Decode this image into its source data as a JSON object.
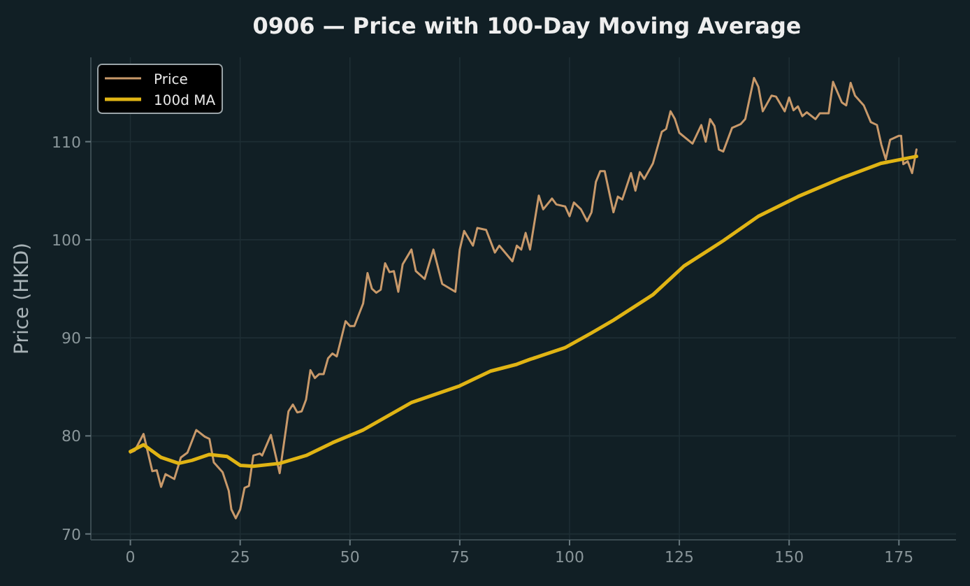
{
  "chart_data": {
    "type": "line",
    "title": "0906 — Price with 100-Day Moving Average",
    "ylabel": "Price (HKD)",
    "xlim": [
      -9,
      188
    ],
    "xticks": [
      0,
      25,
      50,
      75,
      100,
      125,
      150,
      175
    ],
    "ylim": [
      69.4,
      118.6
    ],
    "yticks": [
      70,
      80,
      90,
      100,
      110
    ],
    "grid": true,
    "legend": "top left",
    "line_style": "solid",
    "marker": "none",
    "series": [
      {
        "name": "Price",
        "color": "#c8996a",
        "x": [
          0,
          1,
          3,
          5,
          6,
          7,
          8,
          10,
          11.5,
          13,
          15,
          17,
          18,
          19,
          21,
          22.4,
          23,
          24,
          25,
          26,
          27,
          28,
          29.5,
          30,
          32,
          34,
          36,
          37,
          38,
          39,
          40,
          41,
          42,
          43,
          44,
          45,
          46,
          47,
          49,
          50,
          51,
          53,
          54,
          55,
          56,
          57,
          58,
          59,
          60,
          61,
          62,
          64,
          65,
          67,
          69,
          71,
          74,
          75,
          76,
          78,
          79,
          81,
          83,
          84,
          87,
          88,
          89,
          90,
          91,
          93,
          94,
          96,
          97,
          99,
          100,
          101,
          102.6,
          104,
          105,
          106,
          107,
          108,
          110,
          111,
          112,
          114,
          115,
          116,
          117,
          119,
          121,
          122,
          123,
          124,
          125,
          128,
          130,
          131,
          132,
          133,
          134,
          135,
          137,
          139,
          140,
          142,
          143,
          144,
          146,
          147,
          149,
          150,
          151,
          152,
          153,
          154,
          156,
          157,
          159,
          160,
          162,
          163,
          164,
          165,
          167,
          168.6,
          170,
          171,
          172,
          173,
          175,
          175.5,
          176,
          177,
          178,
          179
        ],
        "values": [
          78.3,
          78.5,
          80.2,
          76.4,
          76.5,
          74.8,
          76.1,
          75.6,
          77.8,
          78.3,
          80.6,
          79.9,
          79.7,
          77.3,
          76.3,
          74.4,
          72.5,
          71.6,
          72.5,
          74.7,
          74.9,
          78.0,
          78.2,
          78.0,
          80.1,
          76.2,
          82.5,
          83.2,
          82.4,
          82.5,
          83.7,
          86.7,
          85.9,
          86.3,
          86.3,
          87.9,
          88.4,
          88.1,
          91.7,
          91.2,
          91.2,
          93.5,
          96.6,
          95.0,
          94.6,
          94.9,
          97.6,
          96.7,
          96.8,
          94.7,
          97.5,
          99.0,
          96.8,
          96.0,
          99.0,
          95.5,
          94.7,
          99.0,
          100.9,
          99.4,
          101.2,
          101.0,
          98.7,
          99.4,
          97.8,
          99.4,
          99.0,
          100.7,
          99.0,
          104.5,
          103.1,
          104.2,
          103.6,
          103.4,
          102.4,
          103.8,
          103.1,
          101.9,
          102.8,
          105.9,
          107.0,
          107.0,
          102.8,
          104.4,
          104.1,
          106.8,
          105.0,
          106.9,
          106.2,
          107.8,
          111.0,
          111.3,
          113.1,
          112.3,
          110.9,
          109.8,
          111.7,
          110.0,
          112.3,
          111.6,
          109.2,
          109.0,
          111.4,
          111.8,
          112.3,
          116.5,
          115.6,
          113.1,
          114.7,
          114.6,
          113.1,
          114.5,
          113.2,
          113.6,
          112.6,
          113.0,
          112.3,
          112.9,
          112.9,
          116.1,
          114.0,
          113.7,
          116.0,
          114.7,
          113.7,
          112.0,
          111.7,
          109.7,
          108.2,
          110.2,
          110.6,
          110.6,
          107.7,
          108.0,
          106.8,
          109.2
        ]
      },
      {
        "name": "100d MA",
        "color": "#e0b414",
        "x": [
          0,
          3,
          7,
          11,
          14,
          18,
          22,
          25,
          28,
          34,
          40,
          46,
          53,
          64,
          75,
          82,
          88,
          91,
          99,
          105,
          110,
          119,
          126,
          135,
          143,
          152,
          162,
          171,
          179
        ],
        "values": [
          78.4,
          79.1,
          77.8,
          77.2,
          77.5,
          78.1,
          77.9,
          77.0,
          76.9,
          77.2,
          78.0,
          79.3,
          80.6,
          83.4,
          85.1,
          86.6,
          87.3,
          87.8,
          89.0,
          90.5,
          91.8,
          94.4,
          97.3,
          99.9,
          102.4,
          104.4,
          106.3,
          107.8,
          108.5
        ]
      }
    ]
  }
}
